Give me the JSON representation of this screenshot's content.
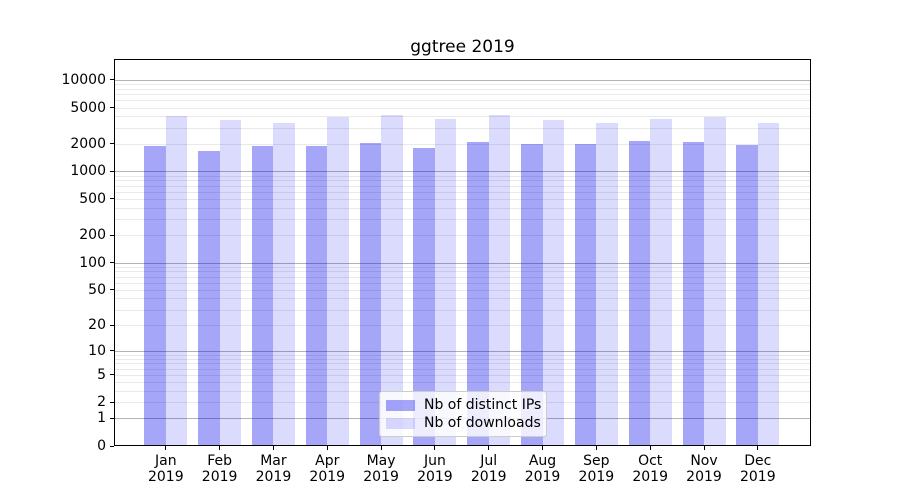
{
  "title": "ggtree 2019",
  "chart_data": {
    "type": "bar",
    "title": "ggtree 2019",
    "categories": [
      "Jan",
      "Feb",
      "Mar",
      "Apr",
      "May",
      "Jun",
      "Jul",
      "Aug",
      "Sep",
      "Oct",
      "Nov",
      "Dec"
    ],
    "category_year": "2019",
    "series": [
      {
        "name": "Nb of distinct IPs",
        "color": "rgba(0,0,238,0.35)",
        "values": [
          1900,
          1690,
          1900,
          1900,
          2030,
          1820,
          2100,
          2010,
          2010,
          2140,
          2100,
          1950
        ]
      },
      {
        "name": "Nb of downloads",
        "color": "rgba(0,0,238,0.14)",
        "values": [
          4040,
          3650,
          3410,
          3940,
          4110,
          3750,
          4180,
          3650,
          3410,
          3780,
          3970,
          3360
        ]
      }
    ],
    "xlabel": "",
    "ylabel": "",
    "y_scale": "log10(value+1)",
    "y_ticks": [
      0,
      1,
      2,
      5,
      10,
      20,
      50,
      100,
      200,
      500,
      1000,
      2000,
      5000,
      10000
    ],
    "ylim": [
      0,
      16700
    ],
    "grid": {
      "major": true,
      "minor": true
    },
    "legend_position": "lower center"
  },
  "colors": {
    "bar_distinct_ips": "rgba(0,0,238,0.35)",
    "bar_downloads": "rgba(0,0,238,0.14)",
    "grid_major": "#b3b3b3",
    "grid_minor": "#e9e9e9",
    "axis": "#000000",
    "background": "#ffffff",
    "legend_border": "#cccccc"
  }
}
